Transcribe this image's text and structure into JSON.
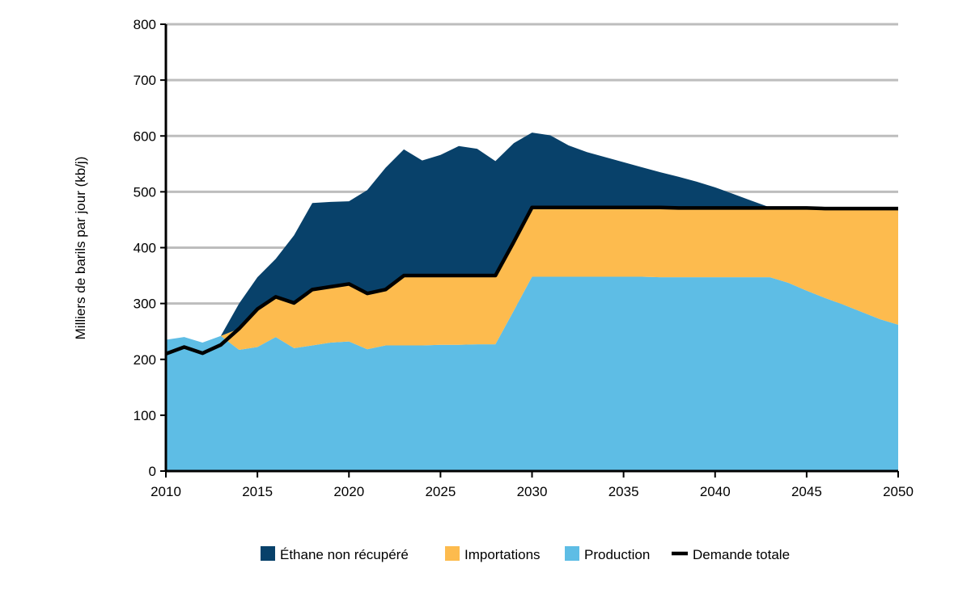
{
  "chart_data": {
    "type": "area",
    "title": "",
    "xlabel": "",
    "ylabel": "Milliers de barils par jour (kb/j)",
    "xlim": [
      2010,
      2050
    ],
    "ylim": [
      0,
      800
    ],
    "x_ticks": [
      "2010",
      "2015",
      "2020",
      "2025",
      "2030",
      "2035",
      "2040",
      "2045",
      "2050"
    ],
    "y_ticks": [
      "0",
      "100",
      "200",
      "300",
      "400",
      "500",
      "600",
      "700",
      "800"
    ],
    "grid": "horizontal",
    "legend_position": "bottom",
    "x": [
      2010,
      2011,
      2012,
      2013,
      2014,
      2015,
      2016,
      2017,
      2018,
      2019,
      2020,
      2021,
      2022,
      2023,
      2024,
      2025,
      2026,
      2027,
      2028,
      2029,
      2030,
      2031,
      2032,
      2033,
      2034,
      2035,
      2036,
      2037,
      2038,
      2039,
      2040,
      2041,
      2042,
      2043,
      2044,
      2045,
      2046,
      2047,
      2048,
      2049,
      2050
    ],
    "series": [
      {
        "name": "Production",
        "color": "#5EBDE5",
        "kind": "stacked-area",
        "values": [
          235,
          240,
          230,
          242,
          217,
          222,
          240,
          220,
          225,
          230,
          232,
          218,
          225,
          225,
          225,
          226,
          226,
          227,
          227,
          287,
          348,
          348,
          348,
          348,
          348,
          348,
          348,
          347,
          347,
          347,
          347,
          347,
          347,
          347,
          337,
          323,
          310,
          298,
          285,
          272,
          262
        ]
      },
      {
        "name": "Importations",
        "color": "#FDBB4E",
        "kind": "stacked-area",
        "values": [
          0,
          0,
          0,
          0,
          38,
          68,
          72,
          82,
          100,
          100,
          103,
          100,
          100,
          125,
          125,
          124,
          124,
          123,
          123,
          120,
          125,
          125,
          125,
          125,
          125,
          125,
          125,
          125,
          125,
          125,
          125,
          125,
          125,
          125,
          135,
          148,
          160,
          172,
          184,
          196,
          206
        ]
      },
      {
        "name": "Éthane non récupéré",
        "color": "#08416A",
        "kind": "stacked-area",
        "values": [
          0,
          0,
          0,
          0,
          45,
          57,
          68,
          120,
          155,
          152,
          148,
          185,
          218,
          226,
          206,
          216,
          232,
          227,
          205,
          180,
          133,
          128,
          110,
          98,
          89,
          80,
          71,
          63,
          55,
          46,
          36,
          24,
          12,
          0,
          0,
          0,
          0,
          0,
          0,
          0,
          0
        ]
      },
      {
        "name": "Demande totale",
        "color": "#000000",
        "kind": "line",
        "values": [
          210,
          222,
          211,
          226,
          255,
          290,
          312,
          301,
          325,
          330,
          335,
          318,
          325,
          350,
          350,
          350,
          350,
          350,
          350,
          410,
          472,
          472,
          472,
          472,
          472,
          472,
          472,
          472,
          471,
          471,
          471,
          471,
          471,
          471,
          471,
          471,
          470,
          470,
          470,
          470,
          470
        ]
      }
    ]
  }
}
